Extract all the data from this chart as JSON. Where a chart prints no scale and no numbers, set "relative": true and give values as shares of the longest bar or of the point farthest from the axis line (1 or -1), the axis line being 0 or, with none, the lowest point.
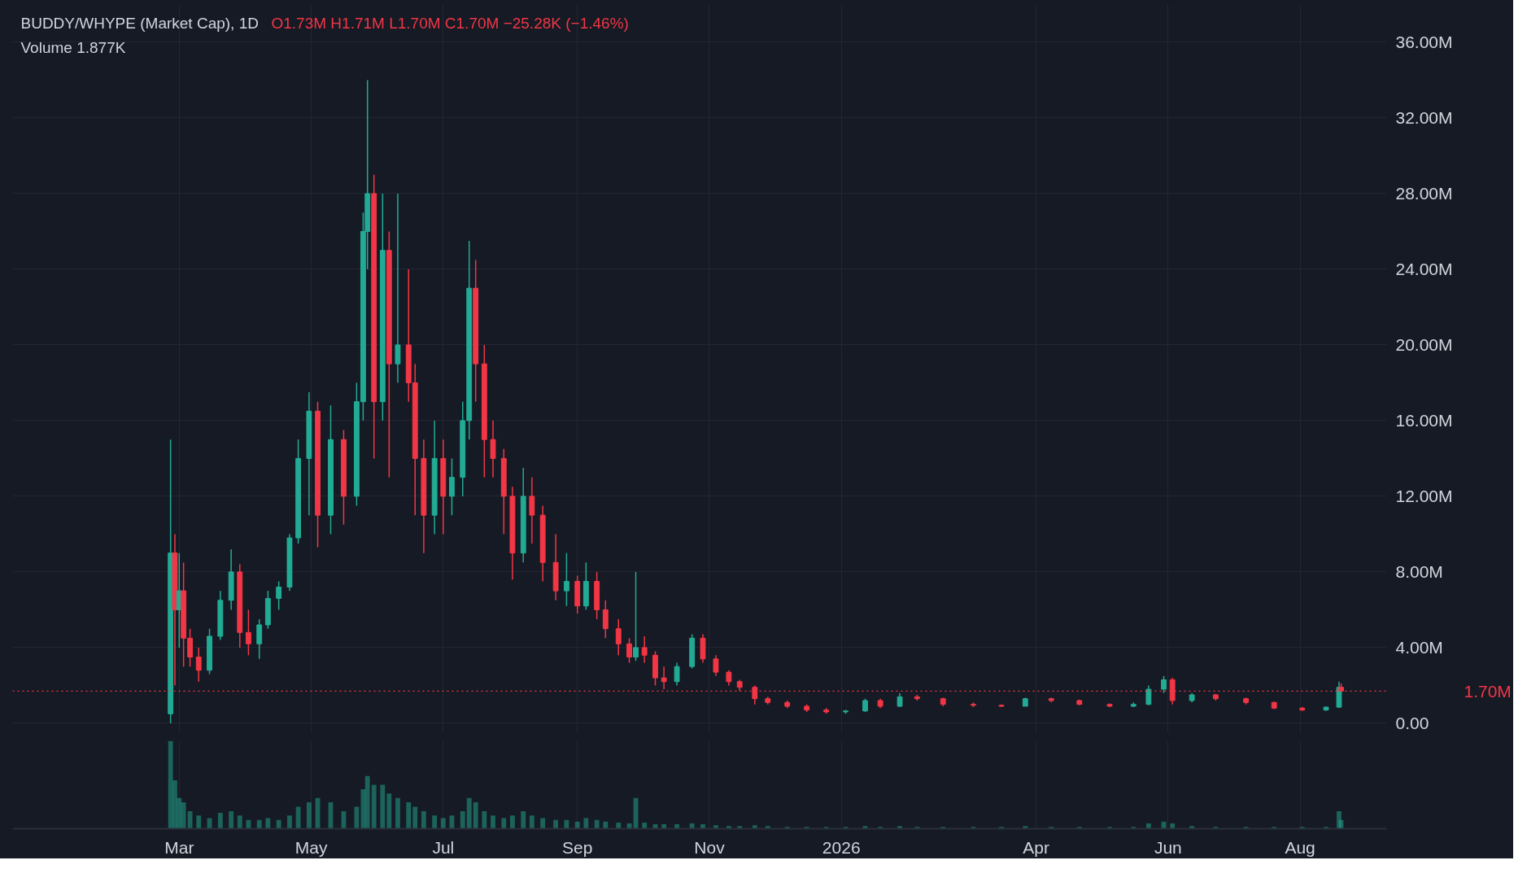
{
  "chart_data": [
    {
      "type": "candlestick",
      "title": "BUDDY/WHYPE (Market Cap), 1D",
      "annotations": [
        "O1.73M  H1.71M  L1.70M  C1.70M  −25.28K (−1.46%)",
        "Volume  1.877K"
      ],
      "x": [
        "2025-02-25",
        "2025-02-27",
        "2025-03-01",
        "2025-03-03",
        "2025-03-06",
        "2025-03-10",
        "2025-03-15",
        "2025-03-20",
        "2025-03-25",
        "2025-03-29",
        "2025-04-02",
        "2025-04-07",
        "2025-04-11",
        "2025-04-16",
        "2025-04-21",
        "2025-04-25",
        "2025-04-30",
        "2025-05-04",
        "2025-05-10",
        "2025-05-16",
        "2025-05-22",
        "2025-05-25",
        "2025-05-27",
        "2025-05-30",
        "2025-06-03",
        "2025-06-06",
        "2025-06-10",
        "2025-06-15",
        "2025-06-18",
        "2025-06-22",
        "2025-06-27",
        "2025-07-01",
        "2025-07-05",
        "2025-07-10",
        "2025-07-13",
        "2025-07-16",
        "2025-07-20",
        "2025-07-24",
        "2025-07-29",
        "2025-08-02",
        "2025-08-07",
        "2025-08-11",
        "2025-08-16",
        "2025-08-22",
        "2025-08-27",
        "2025-09-01",
        "2025-09-05",
        "2025-09-10",
        "2025-09-14",
        "2025-09-20",
        "2025-09-25",
        "2025-09-28",
        "2025-10-02",
        "2025-10-07",
        "2025-10-11",
        "2025-10-17",
        "2025-10-24",
        "2025-10-29",
        "2025-11-04",
        "2025-11-10",
        "2025-11-15",
        "2025-11-22",
        "2025-11-28",
        "2025-12-07",
        "2025-12-16",
        "2025-12-25",
        "2026-01-03",
        "2026-01-12",
        "2026-01-19",
        "2026-01-28",
        "2026-02-05",
        "2026-02-17",
        "2026-03-03",
        "2026-03-16",
        "2026-03-27",
        "2026-04-08",
        "2026-04-21",
        "2026-05-05",
        "2026-05-16",
        "2026-05-23",
        "2026-05-30",
        "2026-06-03",
        "2026-06-12",
        "2026-06-23",
        "2026-07-07",
        "2026-07-20",
        "2026-08-02",
        "2026-08-13",
        "2026-08-19",
        "2026-08-20"
      ],
      "ohlc": [
        [
          0.5,
          15,
          0,
          9
        ],
        [
          9,
          10,
          2,
          6
        ],
        [
          6,
          9,
          4,
          7
        ],
        [
          7,
          8.5,
          3,
          4.5
        ],
        [
          4.5,
          5,
          3,
          3.5
        ],
        [
          3.5,
          4,
          2.2,
          2.8
        ],
        [
          2.8,
          5,
          2.6,
          4.6
        ],
        [
          4.6,
          7,
          4.4,
          6.5
        ],
        [
          6.5,
          9.2,
          6,
          8
        ],
        [
          8,
          8.4,
          4,
          4.8
        ],
        [
          4.8,
          6,
          3.6,
          4.2
        ],
        [
          4.2,
          5.5,
          3.4,
          5.2
        ],
        [
          5.2,
          7,
          5,
          6.6
        ],
        [
          6.6,
          7.5,
          6,
          7.2
        ],
        [
          7.2,
          10,
          7,
          9.8
        ],
        [
          9.8,
          15,
          9.5,
          14
        ],
        [
          14,
          17.5,
          11,
          16.5
        ],
        [
          16.5,
          17,
          9.3,
          11
        ],
        [
          11,
          16.8,
          10,
          15
        ],
        [
          15,
          15.5,
          10.5,
          12
        ],
        [
          12,
          18,
          11.5,
          17
        ],
        [
          17,
          27,
          16,
          26
        ],
        [
          26,
          34,
          24,
          28
        ],
        [
          28,
          29,
          14,
          17
        ],
        [
          17,
          28,
          16,
          25
        ],
        [
          25,
          26,
          13,
          19
        ],
        [
          19,
          28,
          18,
          20
        ],
        [
          20,
          24,
          17,
          18
        ],
        [
          18,
          19,
          11,
          14
        ],
        [
          14,
          15,
          9,
          11
        ],
        [
          11,
          16,
          10,
          14
        ],
        [
          14,
          15,
          10,
          12
        ],
        [
          12,
          14,
          11,
          13
        ],
        [
          13,
          17,
          12,
          16
        ],
        [
          16,
          25.5,
          15,
          23
        ],
        [
          23,
          24.5,
          17,
          19
        ],
        [
          19,
          20,
          13,
          15
        ],
        [
          15,
          16,
          13,
          14
        ],
        [
          14,
          14.5,
          10,
          12
        ],
        [
          12,
          12.5,
          7.6,
          9
        ],
        [
          9,
          13.5,
          8.5,
          12
        ],
        [
          12,
          13,
          9.5,
          11
        ],
        [
          11,
          11.5,
          7.5,
          8.5
        ],
        [
          8.5,
          10,
          6.5,
          7
        ],
        [
          7,
          9,
          6.2,
          7.5
        ],
        [
          7.5,
          7.8,
          5.8,
          6.2
        ],
        [
          6.2,
          8.5,
          6,
          7.5
        ],
        [
          7.5,
          8,
          5.5,
          6
        ],
        [
          6,
          6.5,
          4.5,
          5
        ],
        [
          5,
          5.5,
          3.6,
          4.2
        ],
        [
          4.2,
          4.5,
          3.2,
          3.5
        ],
        [
          3.5,
          8,
          3.3,
          4
        ],
        [
          4,
          4.6,
          3.2,
          3.6
        ],
        [
          3.6,
          3.8,
          2,
          2.4
        ],
        [
          2.4,
          3,
          1.8,
          2.2
        ],
        [
          2.2,
          3.2,
          2,
          3
        ],
        [
          3,
          4.7,
          2.9,
          4.5
        ],
        [
          4.5,
          4.7,
          3.2,
          3.4
        ],
        [
          3.4,
          3.6,
          2.5,
          2.7
        ],
        [
          2.7,
          2.8,
          2,
          2.2
        ],
        [
          2.2,
          2.3,
          1.7,
          1.9
        ],
        [
          1.9,
          2,
          1,
          1.3
        ],
        [
          1.3,
          1.4,
          1,
          1.1
        ],
        [
          1.1,
          1.2,
          0.8,
          0.9
        ],
        [
          0.9,
          1,
          0.6,
          0.7
        ],
        [
          0.7,
          0.8,
          0.5,
          0.6
        ],
        [
          0.6,
          0.7,
          0.5,
          0.65
        ],
        [
          0.65,
          1.3,
          0.6,
          1.2
        ],
        [
          1.2,
          1.3,
          0.8,
          0.9
        ],
        [
          0.9,
          1.6,
          0.85,
          1.4
        ],
        [
          1.4,
          1.5,
          1.2,
          1.3
        ],
        [
          1.3,
          1.35,
          0.9,
          1
        ],
        [
          1,
          1.1,
          0.85,
          0.95
        ],
        [
          0.95,
          1,
          0.85,
          0.9
        ],
        [
          0.9,
          1.35,
          0.9,
          1.3
        ],
        [
          1.3,
          1.35,
          1.1,
          1.2
        ],
        [
          1.2,
          1.25,
          0.95,
          1
        ],
        [
          1,
          1.05,
          0.85,
          0.9
        ],
        [
          0.9,
          1.1,
          0.85,
          1
        ],
        [
          1,
          2,
          0.95,
          1.8
        ],
        [
          1.8,
          2.5,
          1.6,
          2.3
        ],
        [
          2.3,
          2.4,
          1,
          1.2
        ],
        [
          1.2,
          1.6,
          1.1,
          1.5
        ],
        [
          1.5,
          1.55,
          1.2,
          1.3
        ],
        [
          1.3,
          1.35,
          1,
          1.1
        ],
        [
          1.1,
          1.15,
          0.75,
          0.8
        ],
        [
          0.8,
          0.85,
          0.65,
          0.7
        ],
        [
          0.7,
          0.9,
          0.65,
          0.85
        ],
        [
          0.85,
          2.2,
          0.8,
          1.9
        ],
        [
          1.9,
          2.1,
          1.7,
          1.7
        ]
      ],
      "xlim": [
        "2024-12-14",
        "2026-09-10"
      ],
      "xticks": [
        {
          "value": "2025-03-01",
          "label": null
        },
        {
          "value": "2025-05-01",
          "label": null
        },
        {
          "value": "2025-07-01",
          "label": null
        },
        {
          "value": "2025-09-01",
          "label": null
        },
        {
          "value": "2025-11-01",
          "label": null
        },
        {
          "value": "2026-01-01",
          "label": null
        },
        {
          "value": "2026-04-01",
          "label": null
        },
        {
          "value": "2026-06-01",
          "label": null
        },
        {
          "value": "2026-08-01",
          "label": null
        }
      ],
      "ylim": [
        -0.5,
        38
      ],
      "yticks": [
        {
          "value": 0,
          "label": "0.00"
        },
        {
          "value": 4,
          "label": "4.00M"
        },
        {
          "value": 8,
          "label": "8.00M"
        },
        {
          "value": 12,
          "label": "12.00M"
        },
        {
          "value": 16,
          "label": "16.00M"
        },
        {
          "value": 20,
          "label": "20.00M"
        },
        {
          "value": 24,
          "label": "24.00M"
        },
        {
          "value": 28,
          "label": "28.00M"
        },
        {
          "value": 32,
          "label": "32.00M"
        },
        {
          "value": 36,
          "label": "36.00M"
        }
      ],
      "ref_lines": [
        {
          "axis": "y",
          "value": 1.7,
          "label": "1.70M",
          "color": "#f23645",
          "line_style": "dotted"
        }
      ],
      "grid": true,
      "tick_labels": "y"
    },
    {
      "type": "bar",
      "relative": true,
      "x": [
        "2025-02-25",
        "2025-02-27",
        "2025-03-01",
        "2025-03-03",
        "2025-03-06",
        "2025-03-10",
        "2025-03-15",
        "2025-03-20",
        "2025-03-25",
        "2025-03-29",
        "2025-04-02",
        "2025-04-07",
        "2025-04-11",
        "2025-04-16",
        "2025-04-21",
        "2025-04-25",
        "2025-04-30",
        "2025-05-04",
        "2025-05-10",
        "2025-05-16",
        "2025-05-22",
        "2025-05-25",
        "2025-05-27",
        "2025-05-30",
        "2025-06-03",
        "2025-06-06",
        "2025-06-10",
        "2025-06-15",
        "2025-06-18",
        "2025-06-22",
        "2025-06-27",
        "2025-07-01",
        "2025-07-05",
        "2025-07-10",
        "2025-07-13",
        "2025-07-16",
        "2025-07-20",
        "2025-07-24",
        "2025-07-29",
        "2025-08-02",
        "2025-08-07",
        "2025-08-11",
        "2025-08-16",
        "2025-08-22",
        "2025-08-27",
        "2025-09-01",
        "2025-09-05",
        "2025-09-10",
        "2025-09-14",
        "2025-09-20",
        "2025-09-25",
        "2025-09-28",
        "2025-10-02",
        "2025-10-07",
        "2025-10-11",
        "2025-10-17",
        "2025-10-24",
        "2025-10-29",
        "2025-11-04",
        "2025-11-10",
        "2025-11-15",
        "2025-11-22",
        "2025-11-28",
        "2025-12-07",
        "2025-12-16",
        "2025-12-25",
        "2026-01-03",
        "2026-01-12",
        "2026-01-19",
        "2026-01-28",
        "2026-02-05",
        "2026-02-17",
        "2026-03-03",
        "2026-03-16",
        "2026-03-27",
        "2026-04-08",
        "2026-04-21",
        "2026-05-05",
        "2026-05-16",
        "2026-05-23",
        "2026-05-30",
        "2026-06-03",
        "2026-06-12",
        "2026-06-23",
        "2026-07-07",
        "2026-07-20",
        "2026-08-02",
        "2026-08-13",
        "2026-08-19",
        "2026-08-20"
      ],
      "values": [
        1,
        0.55,
        0.35,
        0.3,
        0.2,
        0.15,
        0.12,
        0.18,
        0.2,
        0.15,
        0.1,
        0.1,
        0.12,
        0.1,
        0.15,
        0.25,
        0.3,
        0.35,
        0.3,
        0.2,
        0.25,
        0.45,
        0.6,
        0.5,
        0.5,
        0.4,
        0.35,
        0.3,
        0.25,
        0.2,
        0.15,
        0.12,
        0.15,
        0.2,
        0.35,
        0.3,
        0.2,
        0.15,
        0.12,
        0.15,
        0.2,
        0.15,
        0.12,
        0.1,
        0.1,
        0.08,
        0.12,
        0.1,
        0.08,
        0.07,
        0.06,
        0.35,
        0.07,
        0.05,
        0.05,
        0.05,
        0.06,
        0.05,
        0.04,
        0.03,
        0.03,
        0.04,
        0.03,
        0.02,
        0.02,
        0.02,
        0.02,
        0.03,
        0.02,
        0.03,
        0.02,
        0.02,
        0.02,
        0.02,
        0.03,
        0.02,
        0.02,
        0.02,
        0.02,
        0.06,
        0.08,
        0.06,
        0.03,
        0.02,
        0.02,
        0.02,
        0.02,
        0.02,
        0.2,
        0.1
      ],
      "xlim": [
        "2024-12-14",
        "2026-09-10"
      ],
      "xticks": [
        {
          "value": "2025-03-01",
          "label": "Mar"
        },
        {
          "value": "2025-05-01",
          "label": "May"
        },
        {
          "value": "2025-07-01",
          "label": "Jul"
        },
        {
          "value": "2025-09-01",
          "label": "Sep"
        },
        {
          "value": "2025-11-01",
          "label": "Nov"
        },
        {
          "value": "2026-01-01",
          "label": "2026"
        },
        {
          "value": "2026-04-01",
          "label": "Apr"
        },
        {
          "value": "2026-06-01",
          "label": "Jun"
        },
        {
          "value": "2026-08-01",
          "label": "Aug"
        }
      ],
      "grid": "x",
      "tick_labels": "x"
    }
  ]
}
